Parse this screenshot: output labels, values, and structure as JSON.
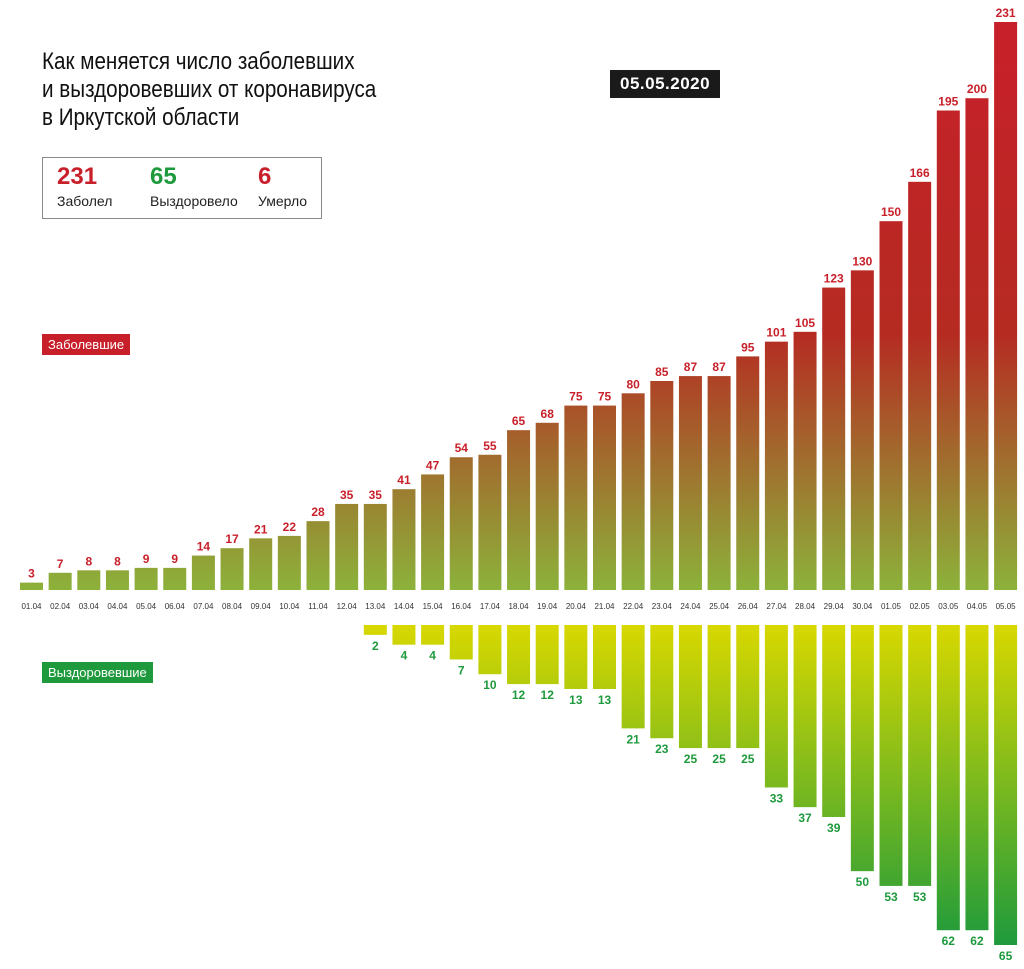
{
  "title": {
    "line1": "Как меняется число заболевших",
    "line2": "и выздоровевших от коронавируса",
    "line3": "в Иркутской области"
  },
  "date_badge": "05.05.2020",
  "stats": {
    "infected": {
      "value": "231",
      "label": "Заболел"
    },
    "recovered": {
      "value": "65",
      "label": "Выздоровело"
    },
    "deaths": {
      "value": "6",
      "label": "Умерло"
    }
  },
  "legend": {
    "infected": "Заболевшие",
    "recovered": "Выздоровевшие"
  },
  "colors": {
    "red": "#c8202a",
    "green": "#1e9a3c",
    "yellow": "#d8d800",
    "olive": "#8cb23a"
  },
  "chart_data": {
    "type": "bar",
    "categories": [
      "01.04",
      "02.04",
      "03.04",
      "04.04",
      "05.04",
      "06.04",
      "07.04",
      "08.04",
      "09.04",
      "10.04",
      "11.04",
      "12.04",
      "13.04",
      "14.04",
      "15.04",
      "16.04",
      "17.04",
      "18.04",
      "19.04",
      "20.04",
      "21.04",
      "22.04",
      "23.04",
      "24.04",
      "25.04",
      "26.04",
      "27.04",
      "28.04",
      "29.04",
      "30.04",
      "01.05",
      "02.05",
      "03.05",
      "04.05",
      "05.05"
    ],
    "series": [
      {
        "name": "Заболевшие",
        "values": [
          3,
          7,
          8,
          8,
          9,
          9,
          14,
          17,
          21,
          22,
          28,
          35,
          35,
          41,
          47,
          54,
          55,
          65,
          68,
          75,
          75,
          80,
          85,
          87,
          87,
          95,
          101,
          105,
          123,
          130,
          150,
          166,
          195,
          200,
          231
        ]
      },
      {
        "name": "Выздоровевшие",
        "values": [
          null,
          null,
          null,
          null,
          null,
          null,
          null,
          null,
          null,
          null,
          null,
          null,
          2,
          4,
          4,
          7,
          10,
          12,
          12,
          13,
          13,
          21,
          23,
          25,
          25,
          25,
          33,
          37,
          39,
          50,
          53,
          53,
          62,
          62,
          65
        ]
      }
    ]
  }
}
